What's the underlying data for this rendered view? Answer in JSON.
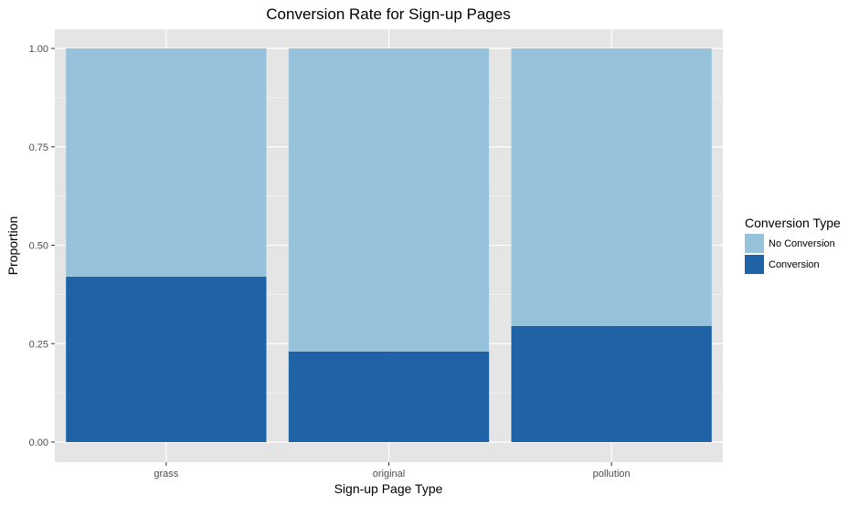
{
  "chart_data": {
    "type": "bar",
    "stacked": true,
    "title": "Conversion Rate for Sign-up Pages",
    "xlabel": "Sign-up Page Type",
    "ylabel": "Proportion",
    "categories": [
      "grass",
      "original",
      "pollution"
    ],
    "series": [
      {
        "name": "Conversion",
        "values": [
          0.42,
          0.23,
          0.295
        ],
        "color": "#1f62a6"
      },
      {
        "name": "No Conversion",
        "values": [
          0.58,
          0.77,
          0.705
        ],
        "color": "#97c2db"
      }
    ],
    "ylim": [
      0,
      1.0
    ],
    "yticks": [
      "0.00",
      "0.25",
      "0.50",
      "0.75",
      "1.00"
    ],
    "ytick_values": [
      0,
      0.25,
      0.5,
      0.75,
      1.0
    ],
    "grid": true,
    "legend": {
      "title": "Conversion Type",
      "position": "right",
      "entries": [
        {
          "label": "No Conversion",
          "color": "#97c2db"
        },
        {
          "label": "Conversion",
          "color": "#1f62a6"
        }
      ]
    },
    "panel_background": "#e5e5e5",
    "grid_color": "#ffffff"
  }
}
